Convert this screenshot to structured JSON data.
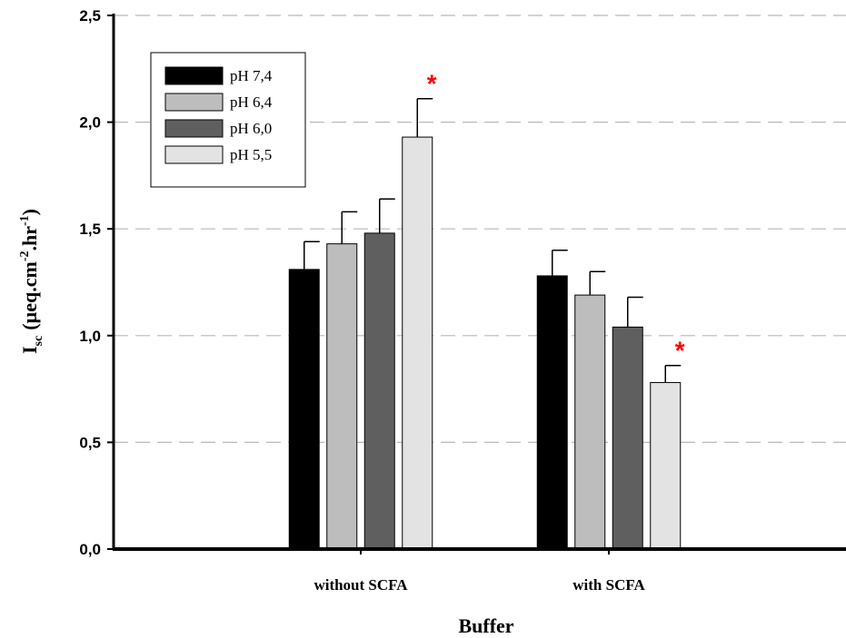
{
  "chart_data": {
    "type": "bar",
    "title": "",
    "xlabel": "Buffer",
    "ylabel_main": "I",
    "ylabel_sub": "sc",
    "ylabel_unit_prefix": "(µeq.cm",
    "ylabel_sup1": "-2",
    "ylabel_unit_mid": ".hr",
    "ylabel_sup2": "-1",
    "ylabel_unit_suffix": ")",
    "ylim": [
      0,
      2.5
    ],
    "yticks": [
      0.0,
      0.5,
      1.0,
      1.5,
      2.0,
      2.5
    ],
    "ytick_labels": [
      "0,0",
      "0,5",
      "1,0",
      "1,5",
      "2,0",
      "2,5"
    ],
    "grid": "horizontal dashed",
    "legend_placement": "top-left",
    "categories": [
      "without SCFA",
      "with SCFA"
    ],
    "series": [
      {
        "name": "pH 7,4",
        "color": "#000000",
        "values": [
          1.31,
          1.28
        ],
        "errors": [
          0.13,
          0.12
        ]
      },
      {
        "name": "pH 6,4",
        "color": "#bdbdbd",
        "values": [
          1.43,
          1.19
        ],
        "errors": [
          0.15,
          0.11
        ]
      },
      {
        "name": "pH 6,0",
        "color": "#5f5f5f",
        "values": [
          1.48,
          1.04
        ],
        "errors": [
          0.16,
          0.14
        ]
      },
      {
        "name": "pH 5,5",
        "color": "#e3e3e3",
        "values": [
          1.93,
          0.78
        ],
        "errors": [
          0.18,
          0.08
        ]
      }
    ],
    "annotations": [
      {
        "text": "*",
        "category": "without SCFA",
        "series": "pH 5,5",
        "color": "#ff0000"
      },
      {
        "text": "*",
        "category": "with SCFA",
        "series": "pH 5,5",
        "color": "#ff0000"
      }
    ]
  }
}
